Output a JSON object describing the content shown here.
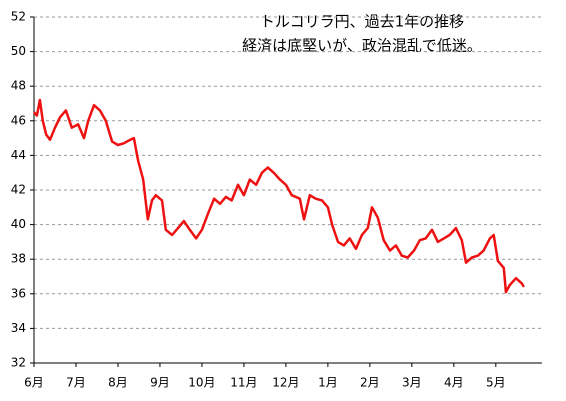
{
  "chart_data": {
    "type": "line",
    "title": "トルコリラ円、過去1年の推移",
    "subtitle": "経済は底堅いが、政治混乱で低迷。",
    "x": [
      0,
      0.07,
      0.14,
      0.21,
      0.29,
      0.38,
      0.5,
      0.62,
      0.76,
      0.9,
      1.05,
      1.19,
      1.29,
      1.43,
      1.57,
      1.71,
      1.86,
      2.0,
      2.14,
      2.29,
      2.38,
      2.48,
      2.6,
      2.71,
      2.81,
      2.9,
      3.05,
      3.14,
      3.29,
      3.43,
      3.57,
      3.71,
      3.86,
      4.0,
      4.14,
      4.29,
      4.43,
      4.57,
      4.71,
      4.86,
      5.0,
      5.14,
      5.29,
      5.43,
      5.57,
      5.71,
      5.86,
      6.0,
      6.14,
      6.33,
      6.43,
      6.57,
      6.71,
      6.86,
      7.0,
      7.1,
      7.24,
      7.38,
      7.52,
      7.67,
      7.81,
      7.95,
      8.05,
      8.19,
      8.33,
      8.48,
      8.62,
      8.76,
      8.9,
      9.05,
      9.19,
      9.33,
      9.48,
      9.62,
      9.76,
      9.9,
      10.05,
      10.19,
      10.29,
      10.43,
      10.57,
      10.71,
      10.86,
      10.95,
      11.05,
      11.19,
      11.24,
      11.33,
      11.48,
      11.62,
      11.67
    ],
    "values": [
      46.5,
      46.3,
      47.2,
      46.0,
      45.2,
      44.9,
      45.6,
      46.2,
      46.6,
      45.6,
      45.8,
      45.0,
      46.0,
      46.9,
      46.6,
      46.0,
      44.8,
      44.6,
      44.7,
      44.9,
      45.0,
      43.7,
      42.6,
      40.3,
      41.4,
      41.7,
      41.4,
      39.7,
      39.4,
      39.8,
      40.2,
      39.7,
      39.2,
      39.7,
      40.6,
      41.5,
      41.2,
      41.6,
      41.4,
      42.3,
      41.7,
      42.6,
      42.3,
      43.0,
      43.3,
      43.0,
      42.6,
      42.3,
      41.7,
      41.5,
      40.3,
      41.7,
      41.5,
      41.4,
      41.0,
      40.0,
      39.0,
      38.8,
      39.2,
      38.6,
      39.4,
      39.8,
      41.0,
      40.4,
      39.1,
      38.5,
      38.8,
      38.2,
      38.1,
      38.5,
      39.1,
      39.2,
      39.7,
      39.0,
      39.2,
      39.4,
      39.8,
      39.1,
      37.8,
      38.1,
      38.2,
      38.5,
      39.2,
      39.4,
      37.9,
      37.5,
      36.1,
      36.5,
      36.9,
      36.6,
      36.4
    ],
    "color": "#ee1111",
    "xlim": [
      0,
      12.1
    ],
    "xticks": [
      {
        "value": 0,
        "label": "6月"
      },
      {
        "value": 1,
        "label": "7月"
      },
      {
        "value": 2,
        "label": "8月"
      },
      {
        "value": 3,
        "label": "9月"
      },
      {
        "value": 4,
        "label": "10月"
      },
      {
        "value": 5,
        "label": "11月"
      },
      {
        "value": 6,
        "label": "12月"
      },
      {
        "value": 7,
        "label": "1月"
      },
      {
        "value": 8,
        "label": "2月"
      },
      {
        "value": 9,
        "label": "3月"
      },
      {
        "value": 10,
        "label": "4月"
      },
      {
        "value": 11,
        "label": "5月"
      }
    ],
    "ylim": [
      32,
      52
    ],
    "yticks": [
      32,
      34,
      36,
      38,
      40,
      42,
      44,
      46,
      48,
      50,
      52
    ],
    "grid": true
  }
}
